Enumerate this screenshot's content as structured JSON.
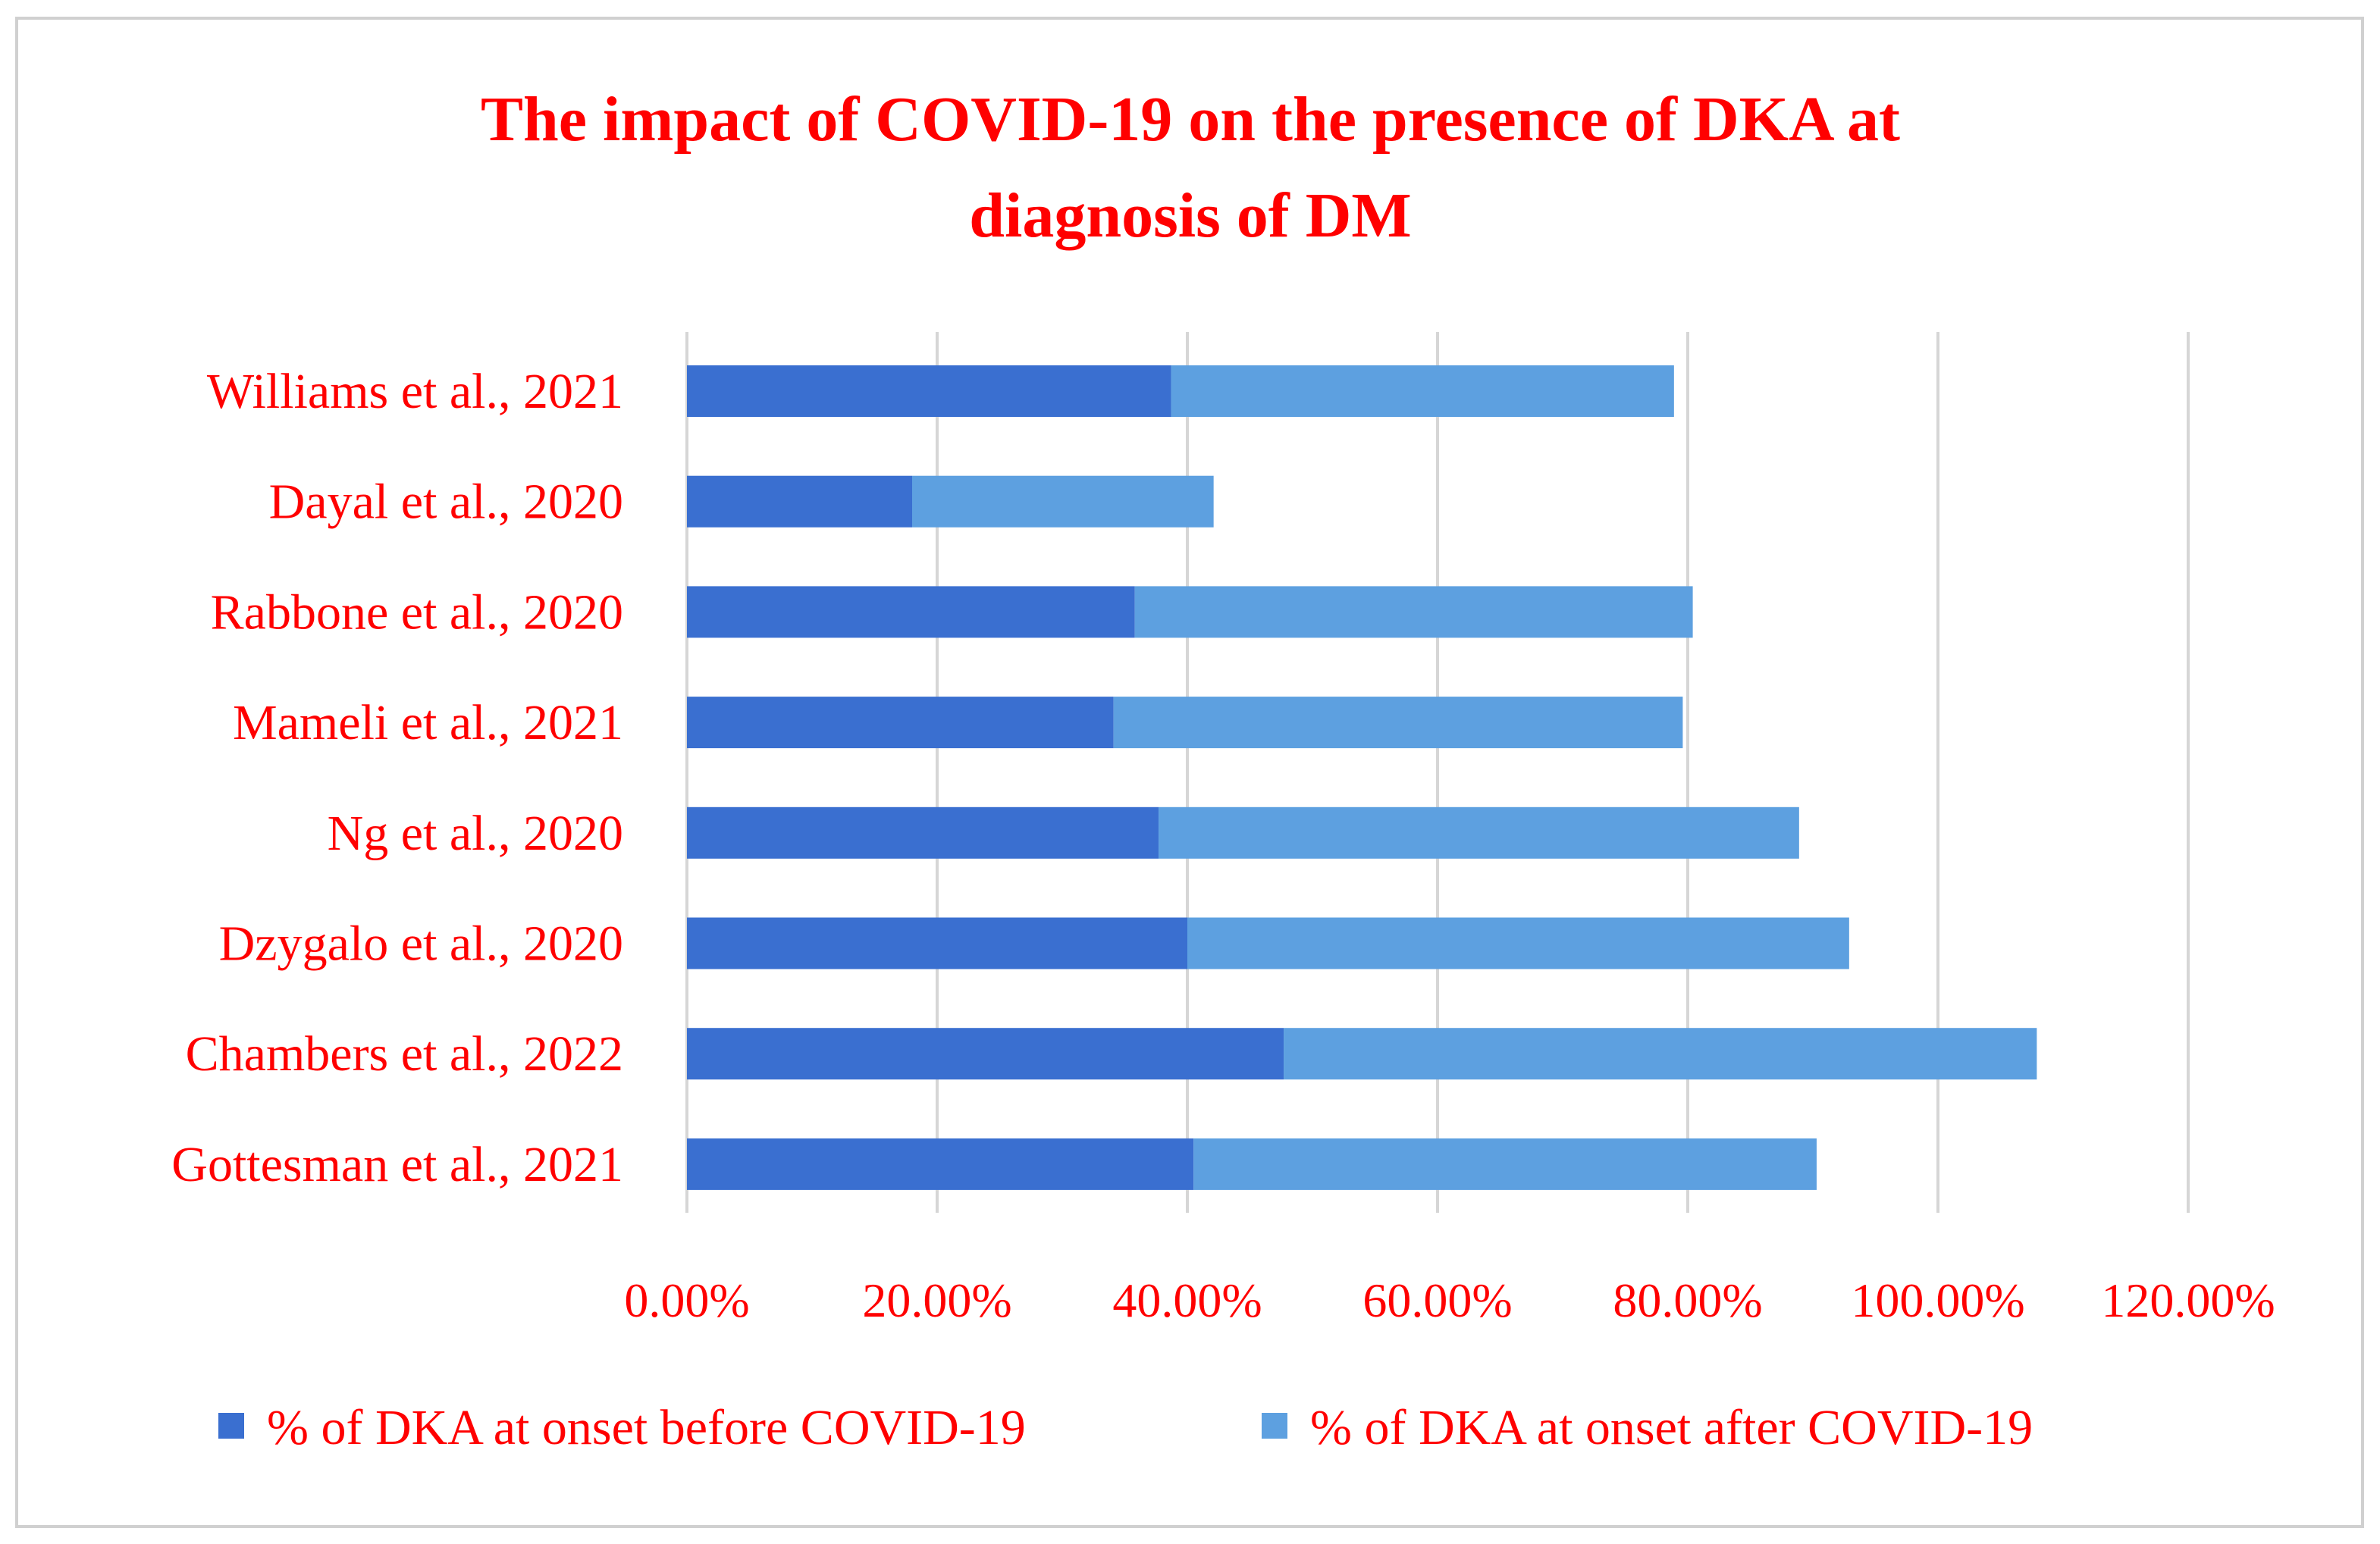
{
  "colors": {
    "text": "#ff0000",
    "series_before": "#3a6fd0",
    "series_after": "#5da0e0",
    "grid": "#d6d6d6",
    "border": "#d0d0d0"
  },
  "chart_data": {
    "type": "bar",
    "orientation": "horizontal",
    "stacked": true,
    "title_lines": [
      "The impact of COVID-19 on the presence of DKA at",
      "diagnosis of DM"
    ],
    "categories": [
      "Williams et al., 2021",
      "Dayal et al., 2020",
      "Rabbone et al., 2020",
      "Mameli et al., 2021",
      "Ng et al., 2020",
      "Dzygalo et al., 2020",
      "Chambers et al., 2022",
      "Gottesman et al., 2021"
    ],
    "series": [
      {
        "name": "% of DKA at onset before COVID-19",
        "values": [
          38.7,
          18.0,
          35.8,
          34.1,
          37.7,
          40.0,
          47.7,
          40.5
        ]
      },
      {
        "name": "% of DKA at onset after COVID-19",
        "values": [
          40.2,
          24.1,
          44.6,
          45.5,
          51.2,
          52.9,
          60.2,
          49.8
        ]
      }
    ],
    "xlim": [
      0,
      120
    ],
    "x_ticks": [
      0,
      20,
      40,
      60,
      80,
      100,
      120
    ],
    "tick_labels": [
      "0.00%",
      "20.00%",
      "40.00%",
      "60.00%",
      "80.00%",
      "100.00%",
      "120.00%"
    ],
    "grid": true,
    "legend_position": "bottom"
  }
}
